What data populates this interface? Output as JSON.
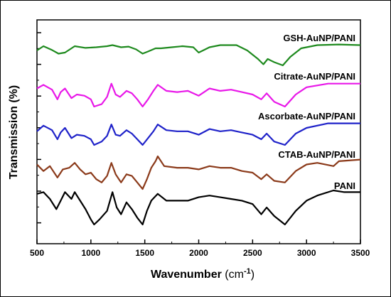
{
  "chart_data": {
    "type": "line",
    "xlabel": "Wavenumber (cm⁻¹)",
    "ylabel": "Transmission (%)",
    "xlim": [
      500,
      3500
    ],
    "x_ticks": [
      "500",
      "1000",
      "1500",
      "2000",
      "2500",
      "3000",
      "3500"
    ],
    "y_ticks_labeled": false,
    "grid": false,
    "legend": "inline labels above each trace",
    "series": [
      {
        "name": "GSH-AuNP/PANI",
        "color": "#1e8a1e",
        "points": [
          [
            500,
            0.3
          ],
          [
            560,
            0.1
          ],
          [
            640,
            0.28
          ],
          [
            700,
            0.45
          ],
          [
            760,
            0.4
          ],
          [
            850,
            0.1
          ],
          [
            950,
            0.18
          ],
          [
            1050,
            0.15
          ],
          [
            1150,
            0.1
          ],
          [
            1200,
            0.05
          ],
          [
            1280,
            0.15
          ],
          [
            1350,
            0.12
          ],
          [
            1420,
            0.25
          ],
          [
            1480,
            0.45
          ],
          [
            1530,
            0.35
          ],
          [
            1600,
            0.2
          ],
          [
            1650,
            0.2
          ],
          [
            1750,
            0.15
          ],
          [
            1850,
            0.1
          ],
          [
            1950,
            0.15
          ],
          [
            2000,
            0.4
          ],
          [
            2100,
            0.15
          ],
          [
            2200,
            0.05
          ],
          [
            2350,
            0.05
          ],
          [
            2450,
            0.3
          ],
          [
            2550,
            0.7
          ],
          [
            2600,
            0.95
          ],
          [
            2640,
            0.7
          ],
          [
            2700,
            0.85
          ],
          [
            2780,
            1.0
          ],
          [
            2850,
            0.6
          ],
          [
            2950,
            0.2
          ],
          [
            3100,
            0.05
          ],
          [
            3300,
            0.02
          ],
          [
            3500,
            0.05
          ]
        ]
      },
      {
        "name": "Citrate-AuNP/PANI",
        "color": "#e817e8",
        "points": [
          [
            500,
            0.25
          ],
          [
            560,
            0.1
          ],
          [
            640,
            0.3
          ],
          [
            690,
            0.7
          ],
          [
            720,
            0.4
          ],
          [
            760,
            0.25
          ],
          [
            820,
            0.65
          ],
          [
            870,
            0.5
          ],
          [
            940,
            0.55
          ],
          [
            1000,
            0.7
          ],
          [
            1030,
            1.0
          ],
          [
            1100,
            0.9
          ],
          [
            1150,
            0.6
          ],
          [
            1190,
            0.05
          ],
          [
            1230,
            0.5
          ],
          [
            1270,
            0.6
          ],
          [
            1330,
            0.35
          ],
          [
            1380,
            0.45
          ],
          [
            1430,
            0.7
          ],
          [
            1480,
            1.0
          ],
          [
            1530,
            0.7
          ],
          [
            1580,
            0.35
          ],
          [
            1620,
            0.1
          ],
          [
            1700,
            0.35
          ],
          [
            1800,
            0.4
          ],
          [
            1900,
            0.35
          ],
          [
            2000,
            0.55
          ],
          [
            2100,
            0.25
          ],
          [
            2200,
            0.35
          ],
          [
            2300,
            0.3
          ],
          [
            2400,
            0.4
          ],
          [
            2500,
            0.5
          ],
          [
            2580,
            0.7
          ],
          [
            2630,
            0.45
          ],
          [
            2700,
            0.8
          ],
          [
            2800,
            1.0
          ],
          [
            2900,
            0.5
          ],
          [
            3000,
            0.2
          ],
          [
            3200,
            0.05
          ],
          [
            3500,
            0.05
          ]
        ]
      },
      {
        "name": "Ascorbate-AuNP/PANI",
        "color": "#1f22c9",
        "points": [
          [
            500,
            0.4
          ],
          [
            560,
            0.15
          ],
          [
            640,
            0.35
          ],
          [
            690,
            0.75
          ],
          [
            720,
            0.45
          ],
          [
            760,
            0.25
          ],
          [
            820,
            0.7
          ],
          [
            870,
            0.55
          ],
          [
            940,
            0.6
          ],
          [
            1000,
            0.75
          ],
          [
            1030,
            1.0
          ],
          [
            1100,
            0.85
          ],
          [
            1150,
            0.6
          ],
          [
            1190,
            0.1
          ],
          [
            1230,
            0.55
          ],
          [
            1270,
            0.6
          ],
          [
            1330,
            0.35
          ],
          [
            1380,
            0.5
          ],
          [
            1430,
            0.75
          ],
          [
            1480,
            1.0
          ],
          [
            1530,
            0.7
          ],
          [
            1580,
            0.4
          ],
          [
            1620,
            0.1
          ],
          [
            1700,
            0.35
          ],
          [
            1800,
            0.4
          ],
          [
            1900,
            0.4
          ],
          [
            2000,
            0.55
          ],
          [
            2100,
            0.3
          ],
          [
            2200,
            0.4
          ],
          [
            2300,
            0.35
          ],
          [
            2400,
            0.45
          ],
          [
            2500,
            0.55
          ],
          [
            2580,
            0.75
          ],
          [
            2630,
            0.5
          ],
          [
            2700,
            0.85
          ],
          [
            2800,
            1.0
          ],
          [
            2900,
            0.5
          ],
          [
            3000,
            0.25
          ],
          [
            3200,
            0.05
          ],
          [
            3500,
            0.05
          ]
        ]
      },
      {
        "name": "CTAB-AuNP/PANI",
        "color": "#8b3a1a",
        "points": [
          [
            500,
            0.25
          ],
          [
            560,
            0.45
          ],
          [
            620,
            0.3
          ],
          [
            690,
            0.65
          ],
          [
            740,
            0.4
          ],
          [
            800,
            0.35
          ],
          [
            850,
            0.2
          ],
          [
            900,
            0.4
          ],
          [
            950,
            0.55
          ],
          [
            1000,
            0.5
          ],
          [
            1050,
            0.7
          ],
          [
            1100,
            0.8
          ],
          [
            1150,
            0.6
          ],
          [
            1190,
            0.2
          ],
          [
            1230,
            0.55
          ],
          [
            1280,
            0.8
          ],
          [
            1330,
            0.55
          ],
          [
            1380,
            0.6
          ],
          [
            1430,
            0.8
          ],
          [
            1480,
            1.0
          ],
          [
            1520,
            0.7
          ],
          [
            1560,
            0.35
          ],
          [
            1600,
            0.15
          ],
          [
            1620,
            0.0
          ],
          [
            1680,
            0.3
          ],
          [
            1800,
            0.35
          ],
          [
            1900,
            0.35
          ],
          [
            2000,
            0.4
          ],
          [
            2100,
            0.3
          ],
          [
            2200,
            0.35
          ],
          [
            2300,
            0.35
          ],
          [
            2400,
            0.45
          ],
          [
            2500,
            0.5
          ],
          [
            2580,
            0.7
          ],
          [
            2630,
            0.55
          ],
          [
            2700,
            0.75
          ],
          [
            2800,
            0.8
          ],
          [
            2900,
            0.45
          ],
          [
            3000,
            0.25
          ],
          [
            3100,
            0.2
          ],
          [
            3250,
            0.3
          ],
          [
            3300,
            0.15
          ],
          [
            3500,
            0.1
          ]
        ]
      },
      {
        "name": "PANI",
        "color": "#000000",
        "points": [
          [
            500,
            0.1
          ],
          [
            560,
            0.05
          ],
          [
            620,
            0.25
          ],
          [
            680,
            0.55
          ],
          [
            720,
            0.3
          ],
          [
            760,
            0.05
          ],
          [
            820,
            0.25
          ],
          [
            850,
            0.05
          ],
          [
            900,
            0.3
          ],
          [
            950,
            0.55
          ],
          [
            1000,
            0.85
          ],
          [
            1030,
            1.0
          ],
          [
            1080,
            0.85
          ],
          [
            1150,
            0.6
          ],
          [
            1200,
            0.05
          ],
          [
            1240,
            0.5
          ],
          [
            1280,
            0.7
          ],
          [
            1330,
            0.35
          ],
          [
            1380,
            0.55
          ],
          [
            1430,
            0.8
          ],
          [
            1480,
            1.0
          ],
          [
            1520,
            0.6
          ],
          [
            1560,
            0.3
          ],
          [
            1620,
            0.1
          ],
          [
            1700,
            0.3
          ],
          [
            1800,
            0.3
          ],
          [
            1900,
            0.3
          ],
          [
            2000,
            0.2
          ],
          [
            2100,
            0.15
          ],
          [
            2200,
            0.2
          ],
          [
            2300,
            0.25
          ],
          [
            2400,
            0.3
          ],
          [
            2500,
            0.4
          ],
          [
            2580,
            0.7
          ],
          [
            2630,
            0.5
          ],
          [
            2700,
            0.75
          ],
          [
            2800,
            1.0
          ],
          [
            2900,
            0.6
          ],
          [
            3000,
            0.3
          ],
          [
            3100,
            0.15
          ],
          [
            3250,
            0.0
          ],
          [
            3350,
            0.05
          ],
          [
            3500,
            0.05
          ]
        ]
      }
    ]
  }
}
